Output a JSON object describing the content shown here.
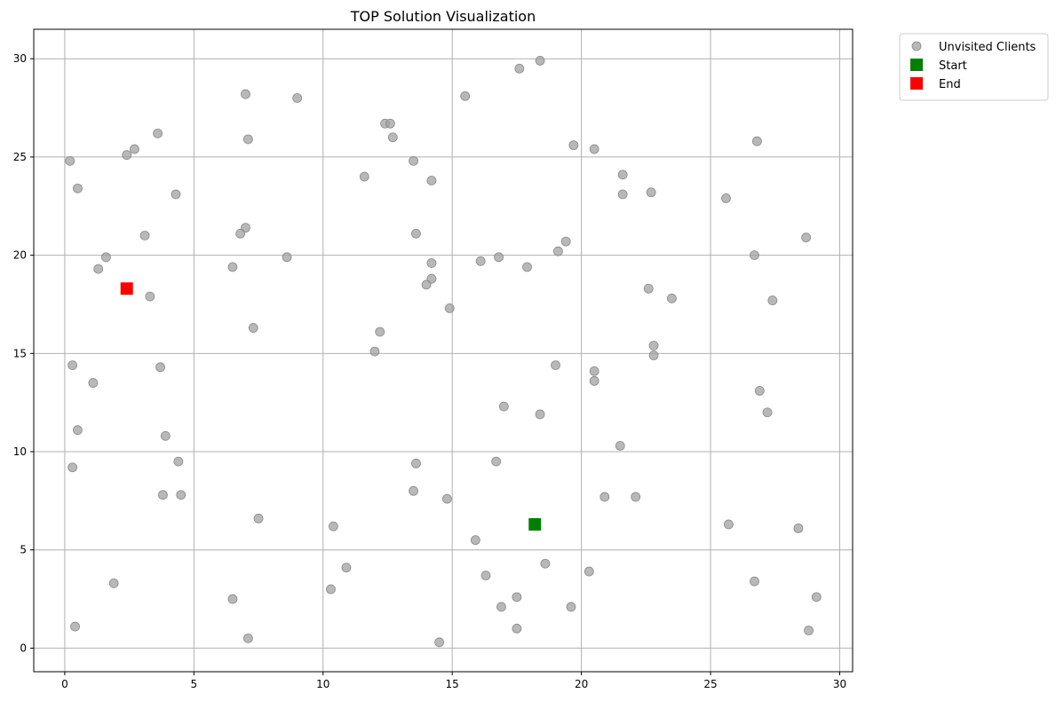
{
  "chart_data": {
    "type": "scatter",
    "title": "TOP Solution Visualization",
    "xlabel": "",
    "ylabel": "",
    "xlim": [
      -1.2,
      30.5
    ],
    "ylim": [
      -1.2,
      31.5
    ],
    "xticks": [
      0,
      5,
      10,
      15,
      20,
      25,
      30
    ],
    "yticks": [
      0,
      5,
      10,
      15,
      20,
      25,
      30
    ],
    "grid": true,
    "legend_position": "outside-top-right",
    "series": [
      {
        "name": "Unvisited Clients",
        "marker": "circle",
        "color": "#a0a0a0",
        "points": [
          [
            0.2,
            24.8
          ],
          [
            0.5,
            23.4
          ],
          [
            2.4,
            25.1
          ],
          [
            2.7,
            25.4
          ],
          [
            3.6,
            26.2
          ],
          [
            4.3,
            23.1
          ],
          [
            3.1,
            21.0
          ],
          [
            1.6,
            19.9
          ],
          [
            1.3,
            19.3
          ],
          [
            3.3,
            17.9
          ],
          [
            0.3,
            14.4
          ],
          [
            1.1,
            13.5
          ],
          [
            3.7,
            14.3
          ],
          [
            0.5,
            11.1
          ],
          [
            3.9,
            10.8
          ],
          [
            0.3,
            9.2
          ],
          [
            4.4,
            9.5
          ],
          [
            3.8,
            7.8
          ],
          [
            4.5,
            7.8
          ],
          [
            1.9,
            3.3
          ],
          [
            0.4,
            1.1
          ],
          [
            7.0,
            28.2
          ],
          [
            7.1,
            25.9
          ],
          [
            9.0,
            28.0
          ],
          [
            7.0,
            21.4
          ],
          [
            6.8,
            21.1
          ],
          [
            6.5,
            19.4
          ],
          [
            8.6,
            19.9
          ],
          [
            7.3,
            16.3
          ],
          [
            7.5,
            6.6
          ],
          [
            6.5,
            2.5
          ],
          [
            7.1,
            0.5
          ],
          [
            10.4,
            6.2
          ],
          [
            10.9,
            4.1
          ],
          [
            10.3,
            3.0
          ],
          [
            12.4,
            26.7
          ],
          [
            12.6,
            26.7
          ],
          [
            12.7,
            26.0
          ],
          [
            11.6,
            24.0
          ],
          [
            13.5,
            24.8
          ],
          [
            14.2,
            23.8
          ],
          [
            13.6,
            21.1
          ],
          [
            14.2,
            19.6
          ],
          [
            14.2,
            18.8
          ],
          [
            14.0,
            18.5
          ],
          [
            14.9,
            17.3
          ],
          [
            12.2,
            16.1
          ],
          [
            12.0,
            15.1
          ],
          [
            13.6,
            9.4
          ],
          [
            13.5,
            8.0
          ],
          [
            14.8,
            7.6
          ],
          [
            14.5,
            0.3
          ],
          [
            15.5,
            28.1
          ],
          [
            17.6,
            29.5
          ],
          [
            18.4,
            29.9
          ],
          [
            16.1,
            19.7
          ],
          [
            16.8,
            19.9
          ],
          [
            17.9,
            19.4
          ],
          [
            17.0,
            12.3
          ],
          [
            18.4,
            11.9
          ],
          [
            16.7,
            9.5
          ],
          [
            15.9,
            5.5
          ],
          [
            16.3,
            3.7
          ],
          [
            16.9,
            2.1
          ],
          [
            17.5,
            2.6
          ],
          [
            17.5,
            1.0
          ],
          [
            18.6,
            4.3
          ],
          [
            19.7,
            25.6
          ],
          [
            20.5,
            25.4
          ],
          [
            19.4,
            20.7
          ],
          [
            19.1,
            20.2
          ],
          [
            19.0,
            14.4
          ],
          [
            20.5,
            14.1
          ],
          [
            20.5,
            13.6
          ],
          [
            21.5,
            10.3
          ],
          [
            20.9,
            7.7
          ],
          [
            22.1,
            7.7
          ],
          [
            20.3,
            3.9
          ],
          [
            19.6,
            2.1
          ],
          [
            21.6,
            24.1
          ],
          [
            21.6,
            23.1
          ],
          [
            22.7,
            23.2
          ],
          [
            22.6,
            18.3
          ],
          [
            23.5,
            17.8
          ],
          [
            22.8,
            15.4
          ],
          [
            22.8,
            14.9
          ],
          [
            26.8,
            25.8
          ],
          [
            25.6,
            22.9
          ],
          [
            28.7,
            20.9
          ],
          [
            26.7,
            20.0
          ],
          [
            27.4,
            17.7
          ],
          [
            26.9,
            13.1
          ],
          [
            27.2,
            12.0
          ],
          [
            25.7,
            6.3
          ],
          [
            28.4,
            6.1
          ],
          [
            26.7,
            3.4
          ],
          [
            29.1,
            2.6
          ],
          [
            28.8,
            0.9
          ]
        ]
      },
      {
        "name": "Start",
        "marker": "square",
        "color": "#008000",
        "points": [
          [
            18.2,
            6.3
          ]
        ]
      },
      {
        "name": "End",
        "marker": "square",
        "color": "#ff0000",
        "points": [
          [
            2.4,
            18.3
          ]
        ]
      }
    ]
  }
}
